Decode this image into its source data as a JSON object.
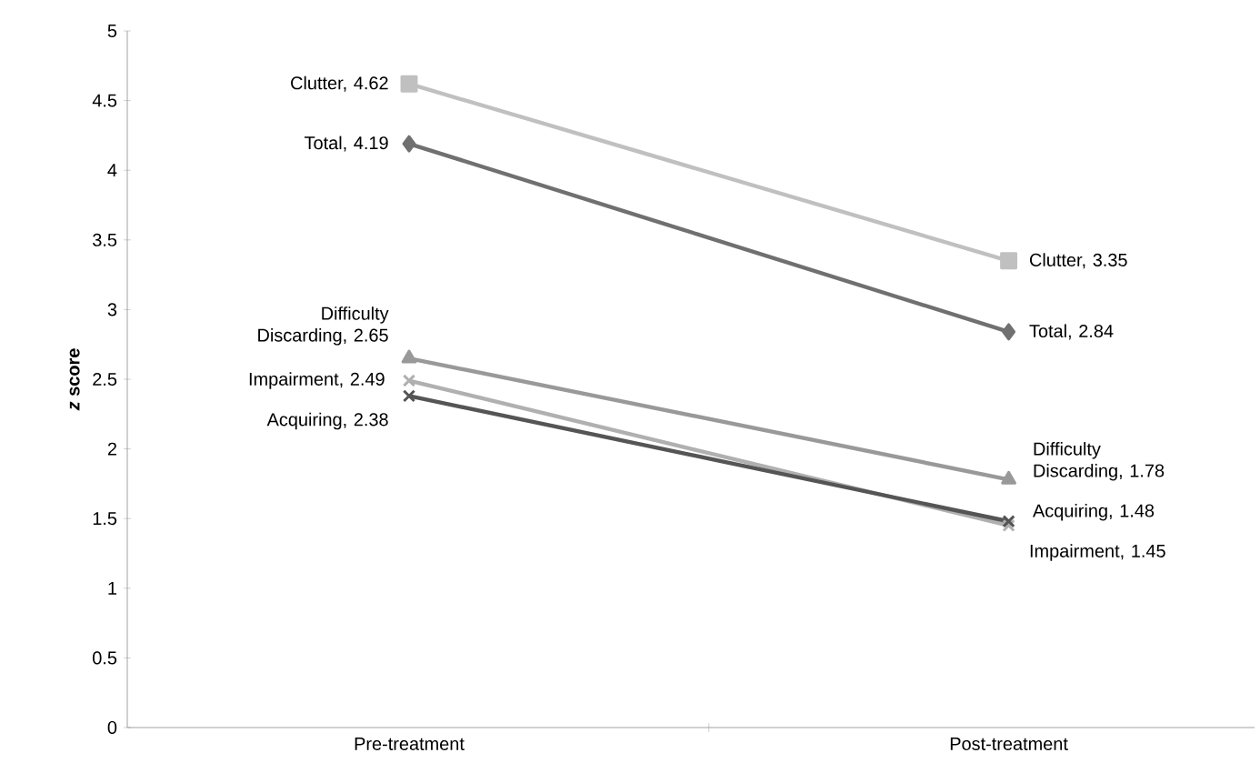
{
  "chart_data": {
    "type": "line",
    "ylabel": "*z* score",
    "categories": [
      "Pre-treatment",
      "Post-treatment"
    ],
    "ylim": [
      0,
      5
    ],
    "yticks": [
      0,
      0.5,
      1,
      1.5,
      2,
      2.5,
      3,
      3.5,
      4,
      4.5,
      5
    ],
    "grid": false,
    "line_style": "solid",
    "series": [
      {
        "color": "#c0c0c0",
        "marker": "square",
        "values": [
          4.62,
          3.35
        ],
        "value_labels": [
          "Clutter, 4.62",
          "Clutter, 3.35"
        ]
      },
      {
        "color": "#707070",
        "marker": "diamond",
        "values": [
          4.19,
          2.84
        ],
        "value_labels": [
          "Total, 4.19",
          "Total, 2.84"
        ]
      },
      {
        "color": "#999999",
        "marker": "triangle",
        "values": [
          2.65,
          1.78
        ],
        "value_labels": [
          "Difficulty Discarding, 2.65",
          "Difficulty Discarding, 1.78"
        ]
      },
      {
        "color": "#b0b0b0",
        "marker": "cross",
        "values": [
          2.49,
          1.45
        ],
        "value_labels": [
          "Impairment, 2.49",
          "Impairment, 1.45"
        ]
      },
      {
        "color": "#555555",
        "marker": "cross",
        "values": [
          2.38,
          1.48
        ],
        "value_labels": [
          "Acquiring, 2.38",
          "Acquiring, 1.48"
        ]
      }
    ]
  }
}
